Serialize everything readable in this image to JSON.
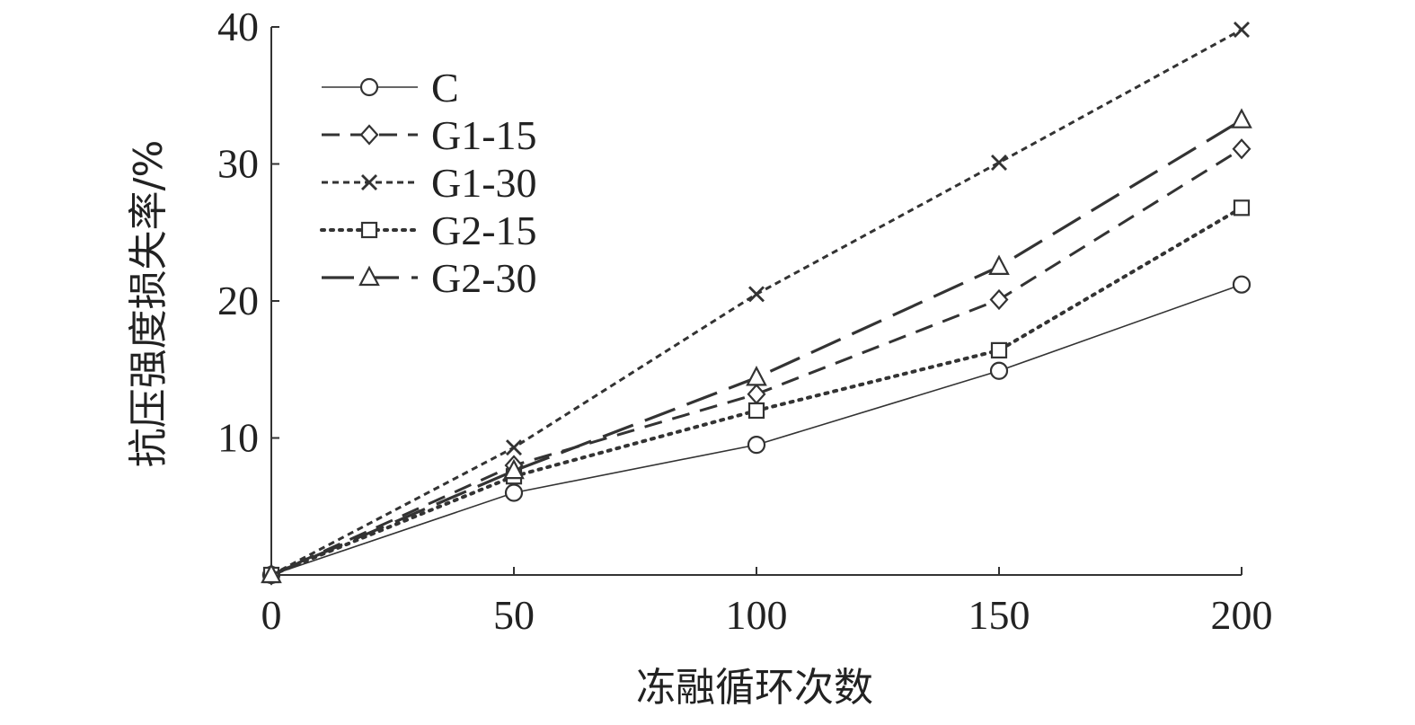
{
  "chart_data": {
    "type": "line",
    "title": "",
    "xlabel": "冻融循环次数",
    "ylabel": "抗压强度损失率/%",
    "x": [
      0,
      50,
      100,
      150,
      200
    ],
    "x_ticks": [
      "0",
      "50",
      "100",
      "150",
      "200"
    ],
    "y_ticks": [
      "10",
      "20",
      "30",
      "40"
    ],
    "xlim": [
      0,
      200
    ],
    "ylim": [
      0,
      40
    ],
    "grid": false,
    "legend_position": "top-left",
    "series": [
      {
        "name": "C",
        "values": [
          0,
          6.0,
          9.5,
          14.9,
          21.2
        ],
        "marker": "circle",
        "dash": "solid"
      },
      {
        "name": "G1-15",
        "values": [
          0,
          8.0,
          13.2,
          20.1,
          31.1
        ],
        "marker": "diamond",
        "dash": "dashed"
      },
      {
        "name": "G1-30",
        "values": [
          0,
          9.3,
          20.5,
          30.1,
          39.8
        ],
        "marker": "x",
        "dash": "short-dashed"
      },
      {
        "name": "G2-15",
        "values": [
          0,
          7.2,
          12.0,
          16.4,
          26.8
        ],
        "marker": "square",
        "dash": "dotted"
      },
      {
        "name": "G2-30",
        "values": [
          0,
          7.6,
          14.4,
          22.5,
          33.2
        ],
        "marker": "triangle",
        "dash": "long-dashed"
      }
    ]
  }
}
